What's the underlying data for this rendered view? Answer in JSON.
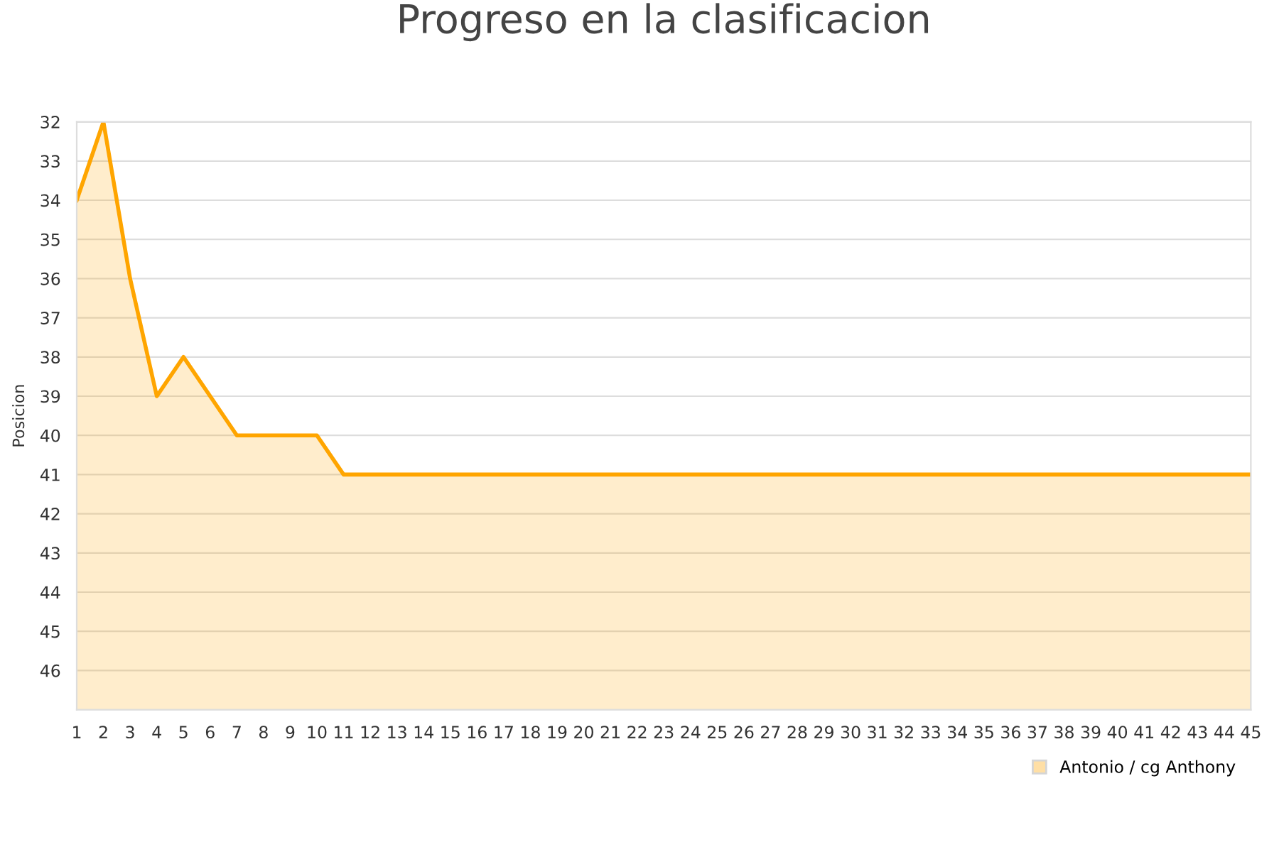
{
  "chart_data": {
    "type": "area",
    "title": "Progreso en la clasificacion",
    "ylabel": "Posicion",
    "x": [
      1,
      2,
      3,
      4,
      5,
      6,
      7,
      8,
      9,
      10,
      11,
      12,
      13,
      14,
      15,
      16,
      17,
      18,
      19,
      20,
      21,
      22,
      23,
      24,
      25,
      26,
      27,
      28,
      29,
      30,
      31,
      32,
      33,
      34,
      35,
      36,
      37,
      38,
      39,
      40,
      41,
      42,
      43,
      44,
      45
    ],
    "series": [
      {
        "name": "Antonio / cg Anthony",
        "color": "#ffa500",
        "values": [
          34,
          32,
          36,
          39,
          38,
          39,
          40,
          40,
          40,
          40,
          41,
          41,
          41,
          41,
          41,
          41,
          41,
          41,
          41,
          41,
          41,
          41,
          41,
          41,
          41,
          41,
          41,
          41,
          41,
          41,
          41,
          41,
          41,
          41,
          41,
          41,
          41,
          41,
          41,
          41,
          41,
          41,
          41,
          41,
          41
        ]
      }
    ],
    "xlim": [
      1,
      45
    ],
    "xticks": [
      1,
      2,
      3,
      4,
      5,
      6,
      7,
      8,
      9,
      10,
      11,
      12,
      13,
      14,
      15,
      16,
      17,
      18,
      19,
      20,
      21,
      22,
      23,
      24,
      25,
      26,
      27,
      28,
      29,
      30,
      31,
      32,
      33,
      34,
      35,
      36,
      37,
      38,
      39,
      40,
      41,
      42,
      43,
      44,
      45
    ],
    "ylim": [
      47,
      32
    ],
    "yticks": [
      32,
      33,
      34,
      35,
      36,
      37,
      38,
      39,
      40,
      41,
      42,
      43,
      44,
      45,
      46
    ],
    "grid": "y",
    "legend": "bottom right",
    "marker": "none",
    "line_style": "solid"
  }
}
